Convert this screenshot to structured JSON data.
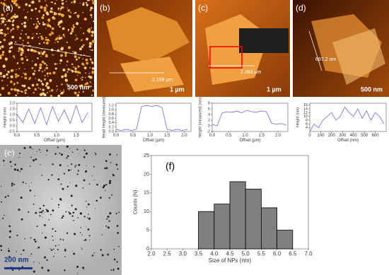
{
  "chart_data": [
    {
      "type": "line",
      "x_label": "Offset (µm)",
      "y_label": "Height (nm)",
      "x": [
        0,
        0.15,
        0.3,
        0.45,
        0.6,
        0.75,
        0.9,
        1.05,
        1.2,
        1.35,
        1.5,
        1.65,
        1.8
      ],
      "series": [
        {
          "color": "#6b6bd6",
          "values": [
            1.0,
            0.3,
            1.5,
            0.2,
            1.6,
            0.1,
            1.7,
            0.4,
            1.4,
            0.2,
            1.8,
            0.3,
            1.2
          ]
        }
      ],
      "xlim": [
        0,
        1.9
      ],
      "ylim": [
        -0.5,
        2.0
      ],
      "xticks": [
        {
          "value": 0,
          "label": "0.0"
        },
        0.5,
        {
          "value": 1,
          "label": "1.0"
        },
        1.5
      ],
      "yticks": [
        {
          "value": -0.5,
          "label": "-0.5"
        },
        {
          "value": 0,
          "label": "0.0"
        },
        0.5,
        {
          "value": 1,
          "label": "1.0"
        },
        1.5,
        {
          "value": 2,
          "label": "2.0"
        }
      ]
    },
    {
      "type": "line",
      "x_label": "Offset (µm)",
      "y_label": "Head Height (measured)",
      "x": [
        0,
        0.15,
        0.3,
        0.45,
        0.6,
        0.75,
        0.9,
        1.05,
        1.2,
        1.35,
        1.5,
        1.65,
        1.8,
        1.95,
        2.1
      ],
      "series": [
        {
          "color": "#6b6bd6",
          "values": [
            0.1,
            0.05,
            0.1,
            0.05,
            0.1,
            1.15,
            1.2,
            1.15,
            1.2,
            1.1,
            0.1,
            0.05,
            0.1,
            0.05,
            0.1
          ]
        }
      ],
      "xlim": [
        0,
        2.2
      ],
      "ylim": [
        0,
        1.3
      ],
      "xticks": [
        {
          "value": 0,
          "label": "0.0"
        },
        0.5,
        {
          "value": 1,
          "label": "1.0"
        },
        1.5,
        {
          "value": 2,
          "label": "2.0"
        }
      ],
      "yticks": [
        {
          "value": 0,
          "label": "0.0"
        },
        0.2,
        0.4,
        0.6,
        0.8,
        {
          "value": 1,
          "label": "1.0"
        },
        1.2
      ]
    },
    {
      "type": "line",
      "x_label": "Offset (µm)",
      "y_label": "Height (measured) (nm)",
      "x": [
        0,
        0.15,
        0.3,
        0.45,
        0.6,
        0.75,
        0.9,
        1.05,
        1.2,
        1.35,
        1.5,
        1.65,
        1.8,
        1.95,
        2.1,
        2.25
      ],
      "series": [
        {
          "color": "#6b6bd6",
          "values": [
            0.5,
            0,
            4.5,
            5,
            4.8,
            5.2,
            4.6,
            5.5,
            5,
            4.8,
            5.3,
            5,
            1,
            0.5,
            0.8,
            0.3
          ]
        }
      ],
      "xlim": [
        0,
        2.3
      ],
      "ylim": [
        -2,
        8
      ],
      "xticks": [
        {
          "value": 0,
          "label": "0.0"
        },
        0.5,
        {
          "value": 1,
          "label": "1.0"
        },
        1.5,
        {
          "value": 2,
          "label": "2.0"
        }
      ],
      "yticks": [
        -2,
        0,
        2,
        4,
        6,
        8
      ]
    },
    {
      "type": "line",
      "x_label": "Offset (nm)",
      "y_label": "Height (nm)",
      "x": [
        0,
        40,
        80,
        120,
        160,
        200,
        240,
        280,
        320,
        360,
        400,
        440,
        480,
        520,
        560,
        600,
        640,
        680
      ],
      "series": [
        {
          "color": "#6b6bd6",
          "values": [
            2,
            6,
            4,
            8,
            10,
            12,
            8,
            10,
            15,
            12,
            10,
            14,
            9,
            13,
            8,
            12,
            10,
            6
          ]
        }
      ],
      "xlim": [
        0,
        700
      ],
      "ylim": [
        2,
        17
      ],
      "xticks": [
        0,
        100,
        200,
        300,
        400,
        500,
        600
      ],
      "yticks": [
        4,
        6,
        8,
        10,
        12,
        14,
        16
      ]
    },
    {
      "type": "histogram",
      "label": "(f)",
      "x_label": "Size of NPs (nm)",
      "y_label": "Counts (N)",
      "bins": [
        3.5,
        4.0,
        4.5,
        5.0,
        5.5,
        6.0,
        6.5
      ],
      "values": [
        10,
        12,
        18,
        16,
        11,
        5
      ],
      "color": "#808080",
      "xlim": [
        2.0,
        7.0
      ],
      "ylim": [
        0,
        25
      ],
      "xticks": [
        {
          "value": 2,
          "label": "2.0"
        },
        2.5,
        {
          "value": 3,
          "label": "3.0"
        },
        3.5,
        {
          "value": 4,
          "label": "4.0"
        },
        4.5,
        {
          "value": 5,
          "label": "5.0"
        },
        5.5,
        {
          "value": 6,
          "label": "6.0"
        },
        6.5,
        {
          "value": 7,
          "label": "7.0"
        }
      ],
      "yticks": [
        0,
        5,
        10,
        15,
        20,
        25
      ]
    }
  ],
  "images": [
    {
      "label": "(a)",
      "scale": "500 nm"
    },
    {
      "label": "(b)",
      "measure": "2.168 µm",
      "scale": "1 µm"
    },
    {
      "label": "(c)",
      "measure": "2.283 µm",
      "scale": "1 µm"
    },
    {
      "label": "(d)",
      "measure": "697.2 nm",
      "scale": "500 nm"
    },
    {
      "label": "(e)",
      "scale": "200 nm"
    }
  ]
}
